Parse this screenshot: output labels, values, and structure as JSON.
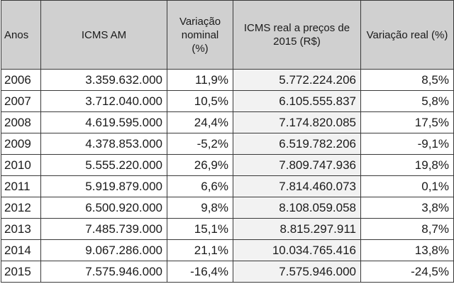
{
  "table": {
    "headers": {
      "anos": "Anos",
      "icms_am": "ICMS AM",
      "var_nominal": "Variação nominal (%)",
      "icms_real": "ICMS  real  a preços de 2015 (R$)",
      "var_real": "Variação real (%)"
    },
    "rows": [
      {
        "ano": "2006",
        "icms_am": "3.359.632.000",
        "var_nominal": "11,9%",
        "icms_real": "5.772.224.206",
        "var_real": "8,5%"
      },
      {
        "ano": "2007",
        "icms_am": "3.712.040.000",
        "var_nominal": "10,5%",
        "icms_real": "6.105.555.837",
        "var_real": "5,8%"
      },
      {
        "ano": "2008",
        "icms_am": "4.619.595.000",
        "var_nominal": "24,4%",
        "icms_real": "7.174.820.085",
        "var_real": "17,5%"
      },
      {
        "ano": "2009",
        "icms_am": "4.378.853.000",
        "var_nominal": "-5,2%",
        "icms_real": "6.519.782.206",
        "var_real": "-9,1%"
      },
      {
        "ano": "2010",
        "icms_am": "5.555.220.000",
        "var_nominal": "26,9%",
        "icms_real": "7.809.747.936",
        "var_real": "19,8%"
      },
      {
        "ano": "2011",
        "icms_am": "5.919.879.000",
        "var_nominal": "6,6%",
        "icms_real": "7.814.460.073",
        "var_real": "0,1%"
      },
      {
        "ano": "2012",
        "icms_am": "6.500.920.000",
        "var_nominal": "9,8%",
        "icms_real": "8.108.059.058",
        "var_real": "3,8%"
      },
      {
        "ano": "2013",
        "icms_am": "7.485.739.000",
        "var_nominal": "15,1%",
        "icms_real": "8.815.297.911",
        "var_real": "8,7%"
      },
      {
        "ano": "2014",
        "icms_am": "9.067.286.000",
        "var_nominal": "21,1%",
        "icms_real": "10.034.765.416",
        "var_real": "13,8%"
      },
      {
        "ano": "2015",
        "icms_am": "7.575.946.000",
        "var_nominal": "-16,4%",
        "icms_real": "7.575.946.000",
        "var_real": "-24,5%"
      }
    ]
  }
}
